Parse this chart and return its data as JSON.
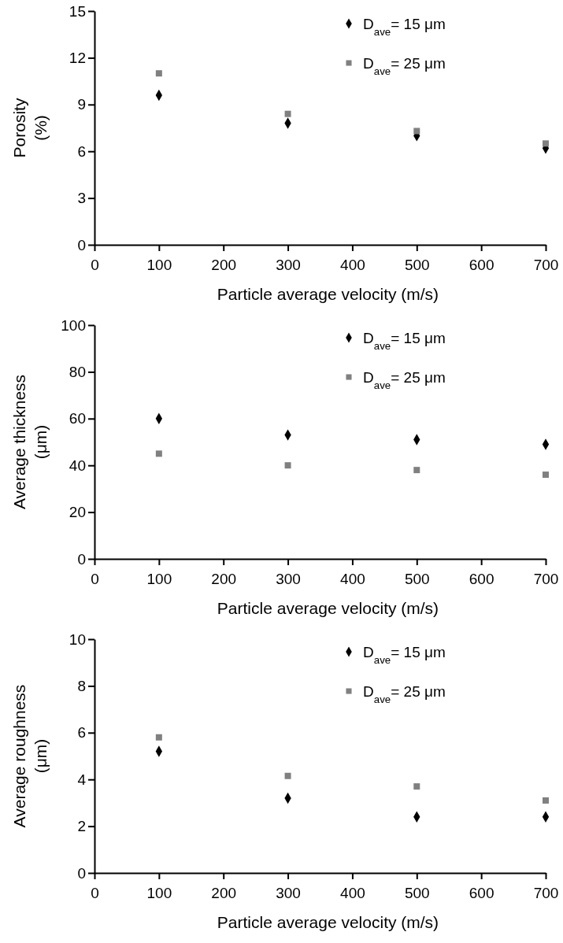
{
  "chart_data": [
    {
      "type": "scatter",
      "xlabel": "Particle average velocity (m/s)",
      "ylabel": "Porosity (%)",
      "x": [
        100,
        300,
        500,
        700
      ],
      "xlim": [
        0,
        700
      ],
      "xticks": [
        0,
        100,
        200,
        300,
        400,
        500,
        600,
        700
      ],
      "ylim": [
        0,
        15
      ],
      "yticks": [
        0,
        3,
        6,
        9,
        12,
        15
      ],
      "legend": "top right",
      "grid": false,
      "series": [
        {
          "name": "D$_{ave}$= 15 μm",
          "color": "#000000",
          "marker": "diamond",
          "values": [
            9.6,
            7.8,
            7.0,
            6.2
          ]
        },
        {
          "name": "D$_{ave}$= 25 μm",
          "color": "#808080",
          "marker": "square",
          "values": [
            11.0,
            8.4,
            7.3,
            6.5
          ]
        }
      ]
    },
    {
      "type": "scatter",
      "xlabel": "Particle average velocity (m/s)",
      "ylabel": "Average thickness (μm)",
      "x": [
        100,
        300,
        500,
        700
      ],
      "xlim": [
        0,
        700
      ],
      "xticks": [
        0,
        100,
        200,
        300,
        400,
        500,
        600,
        700
      ],
      "ylim": [
        0,
        100
      ],
      "yticks": [
        0,
        20,
        40,
        60,
        80,
        100
      ],
      "legend": "top right",
      "grid": false,
      "series": [
        {
          "name": "D$_{ave}$= 15 μm",
          "color": "#000000",
          "marker": "diamond",
          "values": [
            60,
            53,
            51,
            49
          ]
        },
        {
          "name": "D$_{ave}$= 25 μm",
          "color": "#808080",
          "marker": "square",
          "values": [
            45,
            40,
            38,
            36
          ]
        }
      ]
    },
    {
      "type": "scatter",
      "xlabel": "Particle average velocity (m/s)",
      "ylabel": "Average roughness (μm)",
      "x": [
        100,
        300,
        500,
        700
      ],
      "xlim": [
        0,
        700
      ],
      "xticks": [
        0,
        100,
        200,
        300,
        400,
        500,
        600,
        700
      ],
      "ylim": [
        0,
        10
      ],
      "yticks": [
        0,
        2,
        4,
        6,
        8,
        10
      ],
      "legend": "top right",
      "grid": false,
      "series": [
        {
          "name": "D$_{ave}$= 15 μm",
          "color": "#000000",
          "marker": "diamond",
          "values": [
            5.2,
            3.2,
            2.4,
            2.4
          ]
        },
        {
          "name": "D$_{ave}$= 25 μm",
          "color": "#808080",
          "marker": "square",
          "values": [
            5.8,
            4.15,
            3.7,
            3.1
          ]
        }
      ]
    }
  ]
}
